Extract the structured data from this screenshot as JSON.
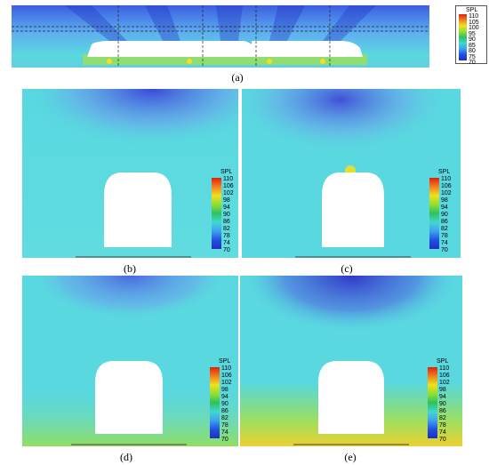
{
  "captions": {
    "a": "(a)",
    "b": "(b)",
    "c": "(c)",
    "d": "(d)",
    "e": "(e)"
  },
  "legend_title": "SPL",
  "legend_a_ticks": [
    "110",
    "105",
    "100",
    "95",
    "90",
    "85",
    "80",
    "75",
    "70"
  ],
  "legend_ticks": [
    "110",
    "106",
    "102",
    "98",
    "94",
    "90",
    "86",
    "82",
    "78",
    "74",
    "70"
  ],
  "colors": {
    "background_field": "#58d8e0",
    "low": "#2040d8",
    "high": "#e02010",
    "train": "#ffffff"
  }
}
